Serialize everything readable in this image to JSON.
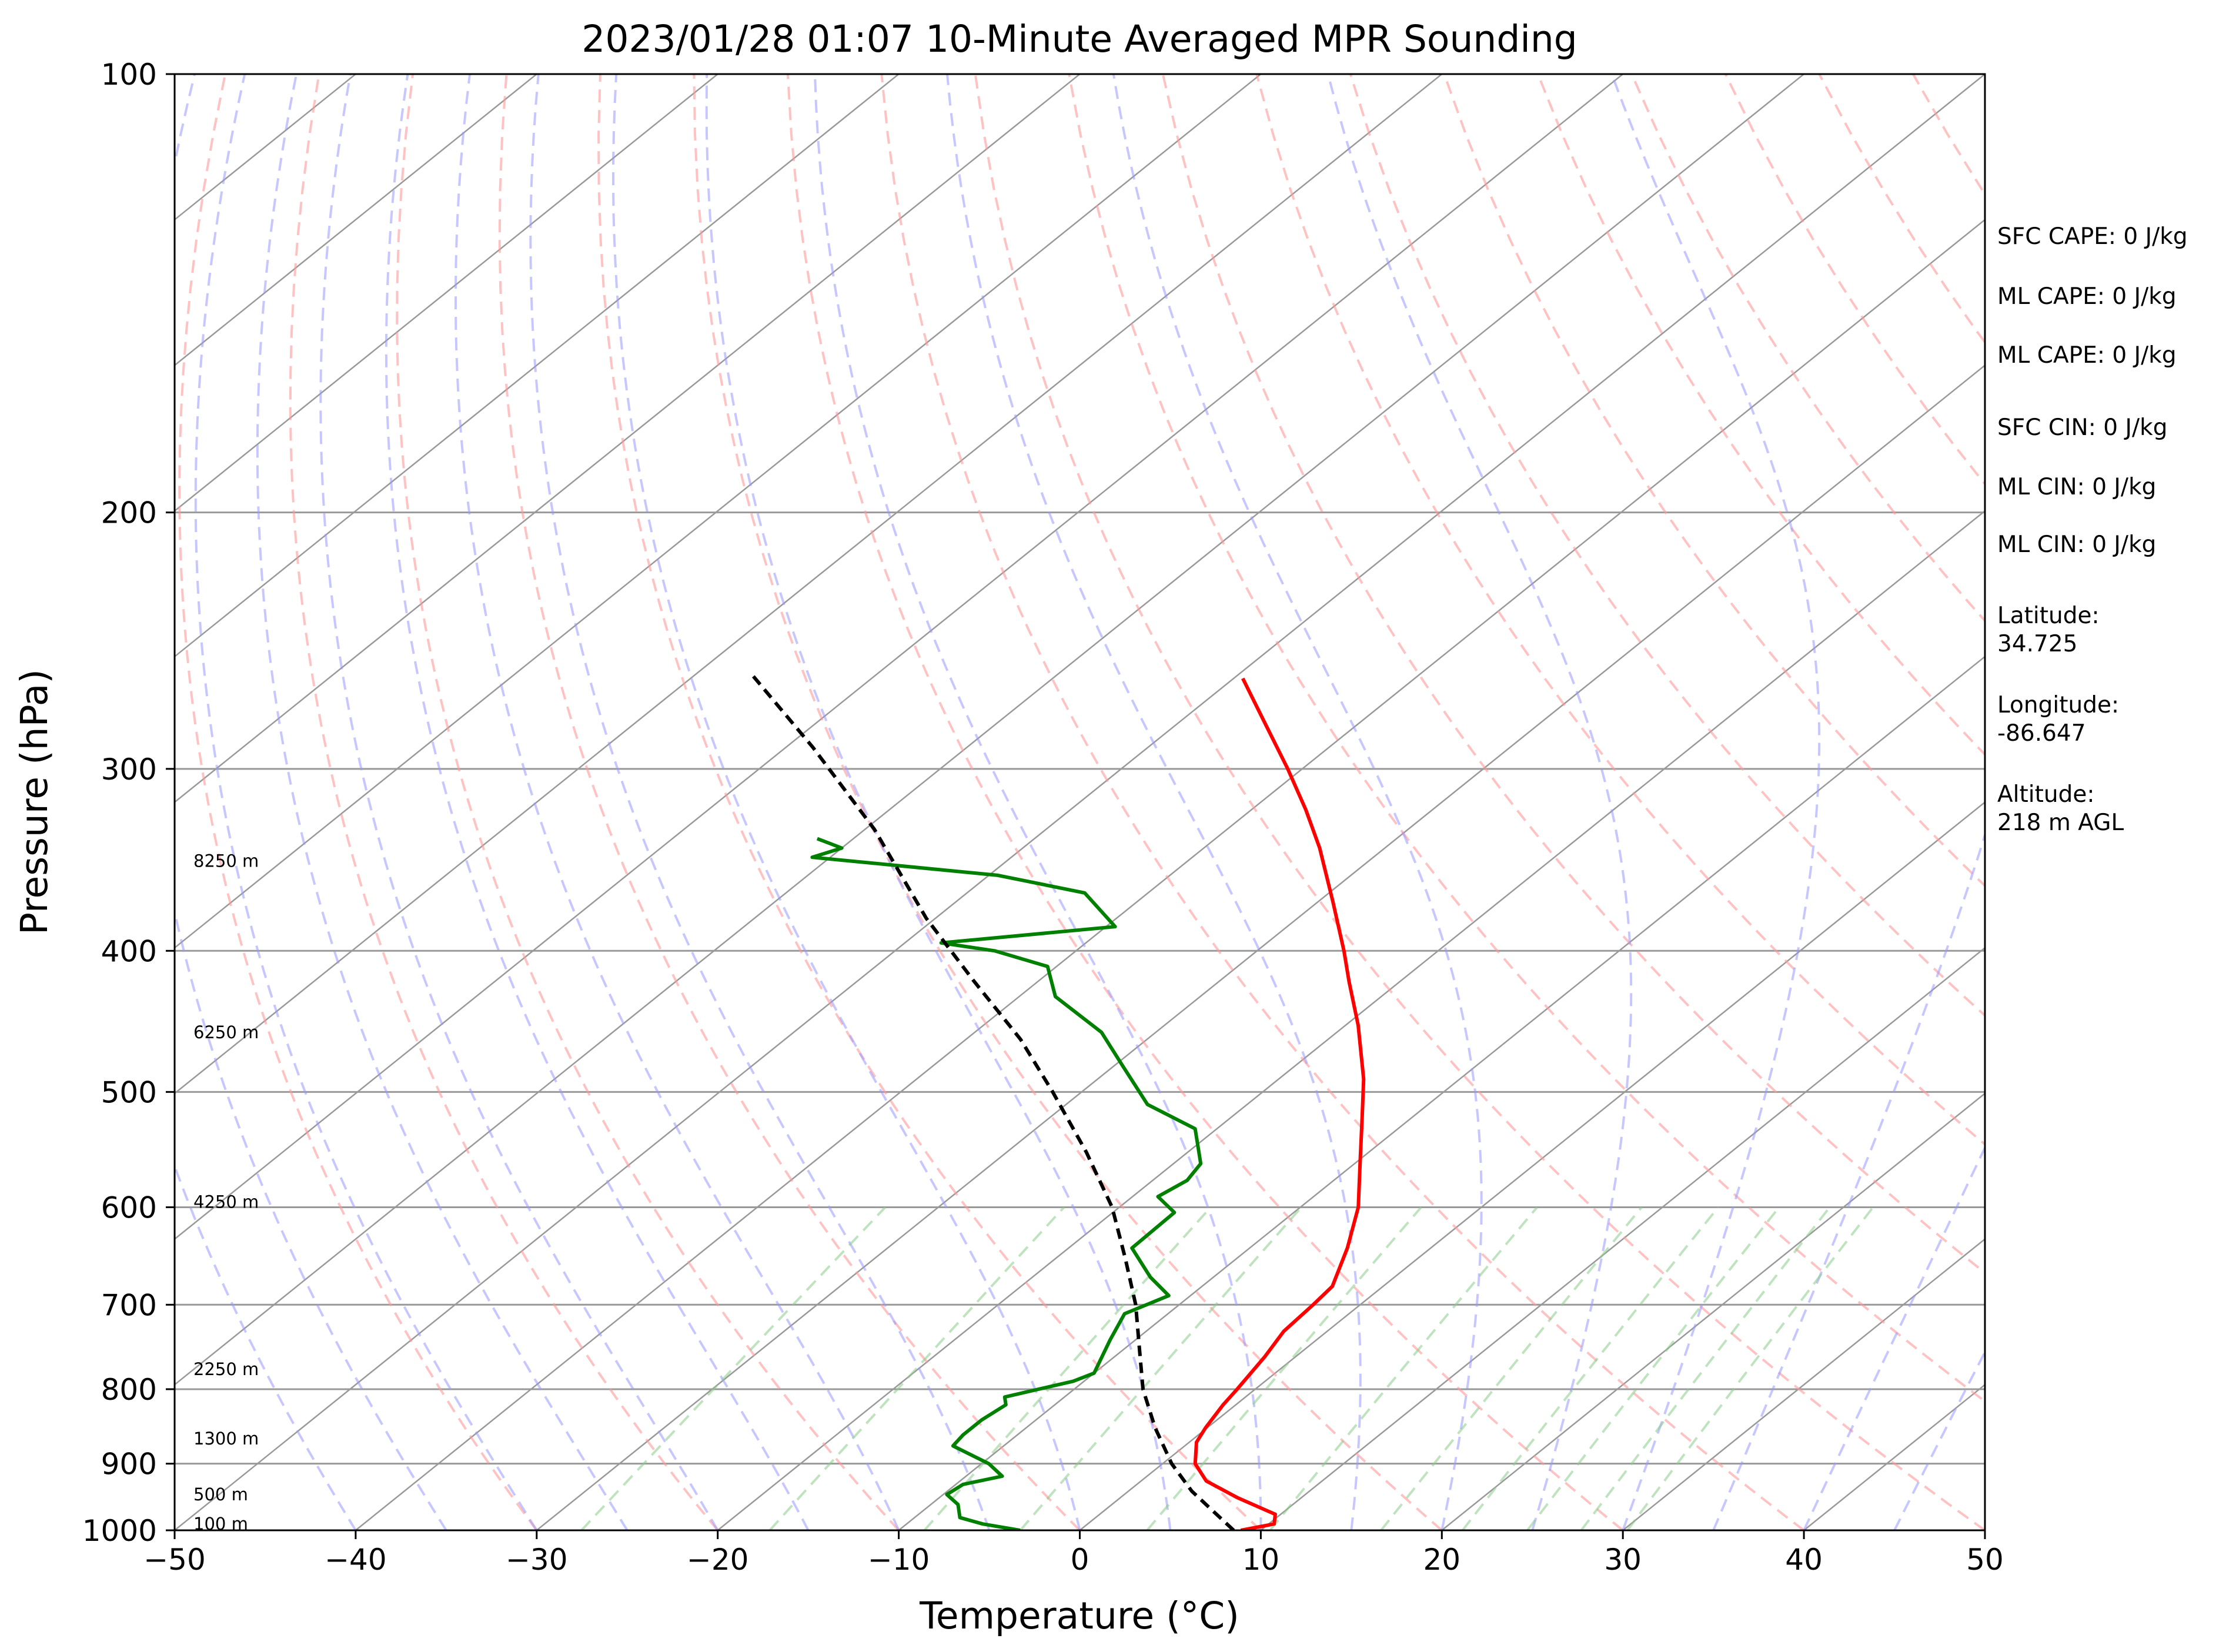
{
  "chart_data": {
    "type": "line",
    "subtype": "skew-T log-P sounding",
    "title": "2023/01/28 01:07 10-Minute Averaged MPR Sounding",
    "xlabel": "Temperature (°C)",
    "ylabel": "Pressure (hPa)",
    "xlim": [
      -50,
      50
    ],
    "ylim": [
      1000,
      100
    ],
    "y_scale": "log",
    "grid": true,
    "x_ticks": [
      "−50",
      "−40",
      "−30",
      "−20",
      "−10",
      "0",
      "10",
      "20",
      "30",
      "40",
      "50"
    ],
    "x_tick_values": [
      -50,
      -40,
      -30,
      -20,
      -10,
      0,
      10,
      20,
      30,
      40,
      50
    ],
    "y_ticks": [
      "1000",
      "900",
      "800",
      "700",
      "600",
      "500",
      "400",
      "300",
      "200",
      "100"
    ],
    "y_tick_values": [
      1000,
      900,
      800,
      700,
      600,
      500,
      400,
      300,
      200,
      100
    ],
    "colors": {
      "temperature": "#ff0000",
      "dewpoint": "#008000",
      "parcel": "#000000",
      "dry_adiabats": "#ff9999",
      "moist_adiabats": "#9999ff",
      "mixing_ratio": "#88cc88",
      "isotherms": "#999999"
    },
    "series": [
      {
        "role": "temperature",
        "points": [
          [
            1000,
            8.9
          ],
          [
            990,
            10.3
          ],
          [
            975,
            9.7
          ],
          [
            950,
            6.5
          ],
          [
            925,
            3.6
          ],
          [
            900,
            1.8
          ],
          [
            870,
            0.4
          ],
          [
            850,
            -0.1
          ],
          [
            820,
            -0.7
          ],
          [
            800,
            -1.0
          ],
          [
            760,
            -1.7
          ],
          [
            730,
            -2.4
          ],
          [
            700,
            -2.6
          ],
          [
            680,
            -2.8
          ],
          [
            640,
            -4.6
          ],
          [
            600,
            -6.8
          ],
          [
            560,
            -9.7
          ],
          [
            520,
            -12.8
          ],
          [
            490,
            -15.3
          ],
          [
            450,
            -19.3
          ],
          [
            420,
            -22.8
          ],
          [
            400,
            -25.2
          ],
          [
            370,
            -29.2
          ],
          [
            340,
            -33.6
          ],
          [
            320,
            -37.0
          ],
          [
            300,
            -40.8
          ],
          [
            280,
            -45.0
          ],
          [
            260,
            -49.5
          ]
        ]
      },
      {
        "role": "dewpoint",
        "points": [
          [
            1000,
            -3.3
          ],
          [
            990,
            -5.8
          ],
          [
            980,
            -7.5
          ],
          [
            960,
            -8.5
          ],
          [
            945,
            -9.8
          ],
          [
            930,
            -9.6
          ],
          [
            918,
            -8.0
          ],
          [
            900,
            -9.6
          ],
          [
            875,
            -12.8
          ],
          [
            860,
            -13.0
          ],
          [
            840,
            -13.0
          ],
          [
            820,
            -12.7
          ],
          [
            810,
            -13.3
          ],
          [
            790,
            -10.6
          ],
          [
            780,
            -10.0
          ],
          [
            740,
            -11.4
          ],
          [
            710,
            -12.4
          ],
          [
            690,
            -11.2
          ],
          [
            670,
            -13.5
          ],
          [
            640,
            -16.5
          ],
          [
            605,
            -16.6
          ],
          [
            590,
            -18.6
          ],
          [
            575,
            -18.1
          ],
          [
            560,
            -18.5
          ],
          [
            530,
            -21.2
          ],
          [
            510,
            -25.5
          ],
          [
            480,
            -29.5
          ],
          [
            455,
            -33.0
          ],
          [
            430,
            -38.0
          ],
          [
            410,
            -40.5
          ],
          [
            400,
            -44.5
          ],
          [
            395,
            -48.0
          ],
          [
            385,
            -39.5
          ],
          [
            365,
            -43.5
          ],
          [
            355,
            -49.5
          ],
          [
            345,
            -61.0
          ],
          [
            340,
            -60.0
          ],
          [
            335,
            -62.0
          ]
        ]
      },
      {
        "role": "parcel",
        "points": [
          [
            1000,
            8.5
          ],
          [
            940,
            3.5
          ],
          [
            900,
            0.5
          ],
          [
            850,
            -2.9
          ],
          [
            800,
            -6.2
          ],
          [
            750,
            -9.2
          ],
          [
            700,
            -12.4
          ],
          [
            650,
            -16.2
          ],
          [
            600,
            -20.4
          ],
          [
            550,
            -25.6
          ],
          [
            500,
            -31.6
          ],
          [
            460,
            -37.0
          ],
          [
            420,
            -43.5
          ],
          [
            380,
            -50.5
          ],
          [
            330,
            -59.5
          ],
          [
            290,
            -68.5
          ],
          [
            258,
            -77.0
          ]
        ]
      }
    ],
    "height_labels": [
      {
        "text": "100 m",
        "p": 990
      },
      {
        "text": "500 m",
        "p": 945
      },
      {
        "text": "1300 m",
        "p": 865
      },
      {
        "text": "2250 m",
        "p": 775
      },
      {
        "text": "4250 m",
        "p": 595
      },
      {
        "text": "6250 m",
        "p": 455
      },
      {
        "text": "8250 m",
        "p": 347
      }
    ],
    "annotations": [
      "SFC CAPE: 0 J/kg",
      "ML CAPE: 0 J/kg",
      "ML CAPE: 0 J/kg",
      "SFC CIN: 0 J/kg",
      "ML CIN: 0 J/kg",
      "ML CIN: 0 J/kg",
      "Latitude:",
      "34.725",
      "Longitude:",
      "-86.647",
      "Altitude:",
      "218 m AGL"
    ]
  }
}
